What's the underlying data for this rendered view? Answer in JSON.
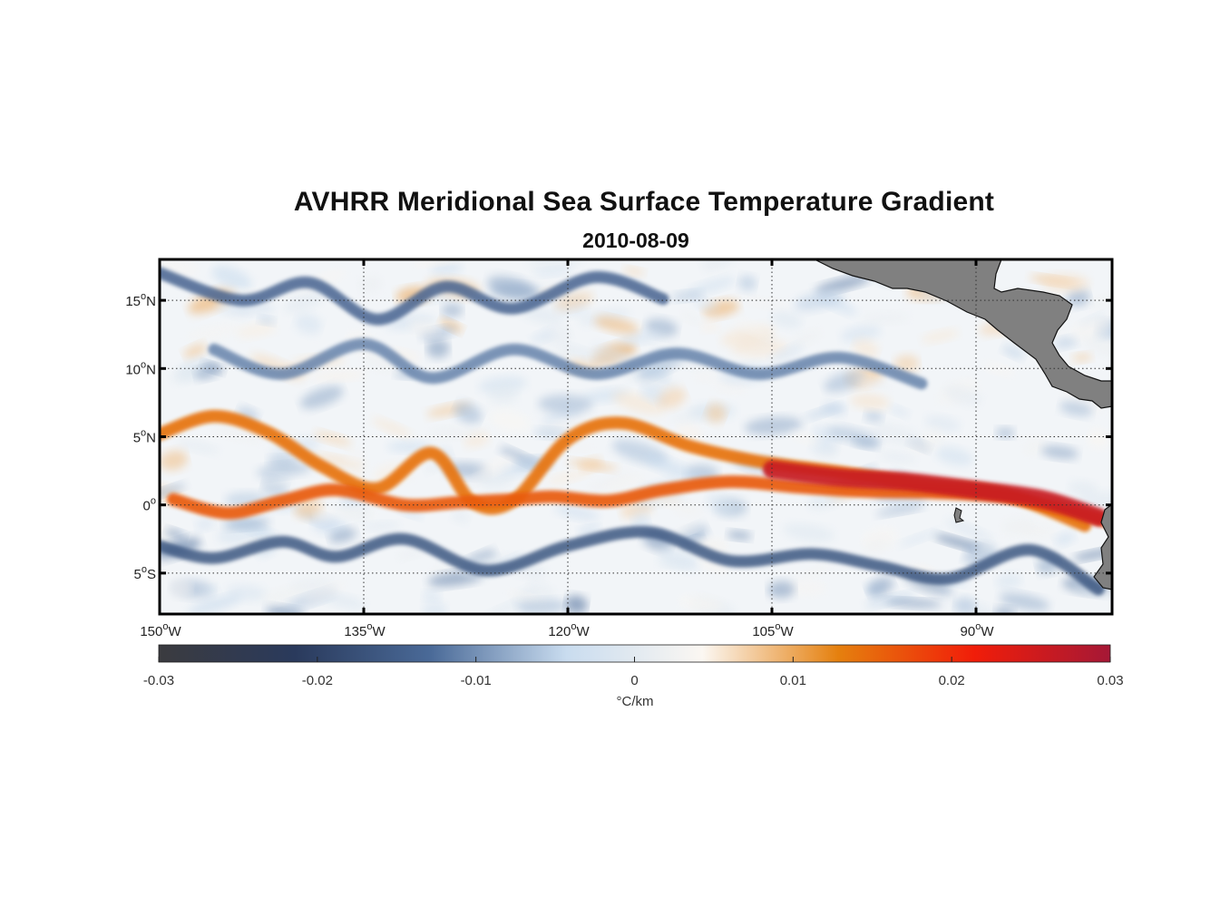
{
  "chart_data": {
    "type": "heatmap",
    "title": "AVHRR Meridional Sea Surface Temperature Gradient",
    "subtitle": "2010-08-09",
    "lon_range": [
      -150,
      -80
    ],
    "lat_range": [
      -8,
      18
    ],
    "x_ticks": [
      {
        "value": -150,
        "label": "150",
        "hemi": "W"
      },
      {
        "value": -135,
        "label": "135",
        "hemi": "W"
      },
      {
        "value": -120,
        "label": "120",
        "hemi": "W"
      },
      {
        "value": -105,
        "label": "105",
        "hemi": "W"
      },
      {
        "value": -90,
        "label": "90",
        "hemi": "W"
      }
    ],
    "y_ticks": [
      {
        "value": 15,
        "label": "15",
        "hemi": "N"
      },
      {
        "value": 10,
        "label": "10",
        "hemi": "N"
      },
      {
        "value": 5,
        "label": "5",
        "hemi": "N"
      },
      {
        "value": 0,
        "label": "0",
        "hemi": ""
      },
      {
        "value": -5,
        "label": "5",
        "hemi": "S"
      }
    ],
    "colorbar": {
      "range": [
        -0.03,
        0.03
      ],
      "ticks": [
        -0.03,
        -0.02,
        -0.01,
        0,
        0.01,
        0.02,
        0.03
      ],
      "tick_labels": [
        "-0.03",
        "-0.02",
        "-0.01",
        "0",
        "0.01",
        "0.02",
        "0.03"
      ],
      "units": "°C/km",
      "colormap": [
        "#3b3b3f",
        "#2a3a5c",
        "#4a6a98",
        "#c9dcef",
        "#fbf7f2",
        "#e5800e",
        "#f11d09",
        "#a51836"
      ]
    },
    "features": {
      "warm_fronts": [
        {
          "points": [
            [
              -150,
              5.2
            ],
            [
              -146,
              6.5
            ],
            [
              -142,
              5.3
            ],
            [
              -138,
              2.8
            ],
            [
              -134,
              1.2
            ],
            [
              -130,
              3.8
            ],
            [
              -127,
              0.2
            ],
            [
              -124,
              0.3
            ],
            [
              -120,
              4.8
            ],
            [
              -116,
              6.0
            ],
            [
              -111,
              4.3
            ],
            [
              -106,
              3.2
            ],
            [
              -100,
              2.4
            ],
            [
              -94,
              1.5
            ],
            [
              -88,
              0.8
            ],
            [
              -82,
              -1.5
            ]
          ],
          "value": 0.014
        },
        {
          "points": [
            [
              -149,
              0.4
            ],
            [
              -145,
              -0.6
            ],
            [
              -141,
              0.3
            ],
            [
              -137,
              1.1
            ],
            [
              -132,
              0.0
            ],
            [
              -128,
              0.2
            ],
            [
              -124,
              0.4
            ],
            [
              -121,
              0.6
            ],
            [
              -117,
              0.3
            ],
            [
              -113,
              1.1
            ],
            [
              -108,
              1.7
            ],
            [
              -103,
              1.3
            ],
            [
              -98,
              1.0
            ],
            [
              -93,
              0.9
            ],
            [
              -88,
              0.6
            ],
            [
              -84,
              -0.2
            ],
            [
              -80,
              -1.3
            ]
          ],
          "value": 0.016
        },
        {
          "points": [
            [
              -105,
              2.6
            ],
            [
              -100,
              2.0
            ],
            [
              -95,
              1.7
            ],
            [
              -90,
              1.1
            ],
            [
              -85,
              0.4
            ],
            [
              -81,
              -0.9
            ]
          ],
          "value": 0.026
        }
      ],
      "cold_fronts": [
        {
          "points": [
            [
              -150,
              -3.0
            ],
            [
              -146,
              -3.9
            ],
            [
              -141,
              -2.7
            ],
            [
              -137,
              -3.8
            ],
            [
              -132,
              -2.5
            ],
            [
              -126,
              -4.8
            ],
            [
              -120,
              -3.0
            ],
            [
              -114,
              -2.0
            ],
            [
              -108,
              -4.1
            ],
            [
              -102,
              -3.6
            ],
            [
              -97,
              -4.5
            ],
            [
              -92,
              -5.4
            ],
            [
              -86,
              -3.3
            ],
            [
              -81,
              -6.2
            ]
          ],
          "value": -0.016
        },
        {
          "points": [
            [
              -150,
              17.0
            ],
            [
              -144,
              15.0
            ],
            [
              -139,
              16.3
            ],
            [
              -134,
              13.6
            ],
            [
              -129,
              16.0
            ],
            [
              -124,
              14.4
            ],
            [
              -118,
              16.7
            ],
            [
              -113,
              15.1
            ]
          ],
          "value": -0.014
        },
        {
          "points": [
            [
              -146,
              11.4
            ],
            [
              -141,
              9.6
            ],
            [
              -135,
              11.8
            ],
            [
              -130,
              9.3
            ],
            [
              -124,
              11.4
            ],
            [
              -118,
              9.6
            ],
            [
              -112,
              11.1
            ],
            [
              -106,
              9.6
            ],
            [
              -100,
              10.8
            ],
            [
              -94,
              8.9
            ]
          ],
          "value": -0.011
        }
      ],
      "land_label": "Central America coastline"
    }
  }
}
